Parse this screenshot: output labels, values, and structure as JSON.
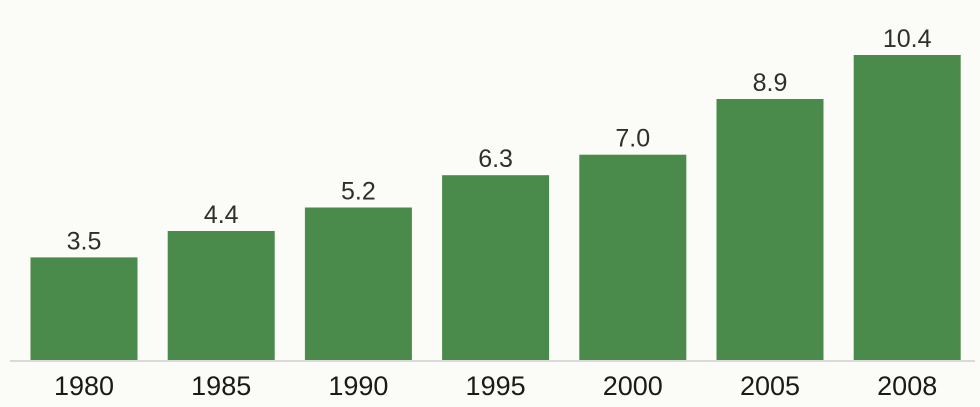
{
  "chart_data": {
    "type": "bar",
    "categories": [
      "1980",
      "1985",
      "1990",
      "1995",
      "2000",
      "2005",
      "2008"
    ],
    "values": [
      3.5,
      4.4,
      5.2,
      6.3,
      7.0,
      8.9,
      10.4
    ],
    "value_labels": [
      "3.5",
      "4.4",
      "5.2",
      "6.3",
      "7.0",
      "8.9",
      "10.4"
    ],
    "title": "",
    "xlabel": "",
    "ylabel": "",
    "ylim": [
      0,
      10.4
    ],
    "grid": false,
    "legend": "none",
    "bar_color": "#4a8a4a",
    "axis_color": "#d9d9d9"
  }
}
